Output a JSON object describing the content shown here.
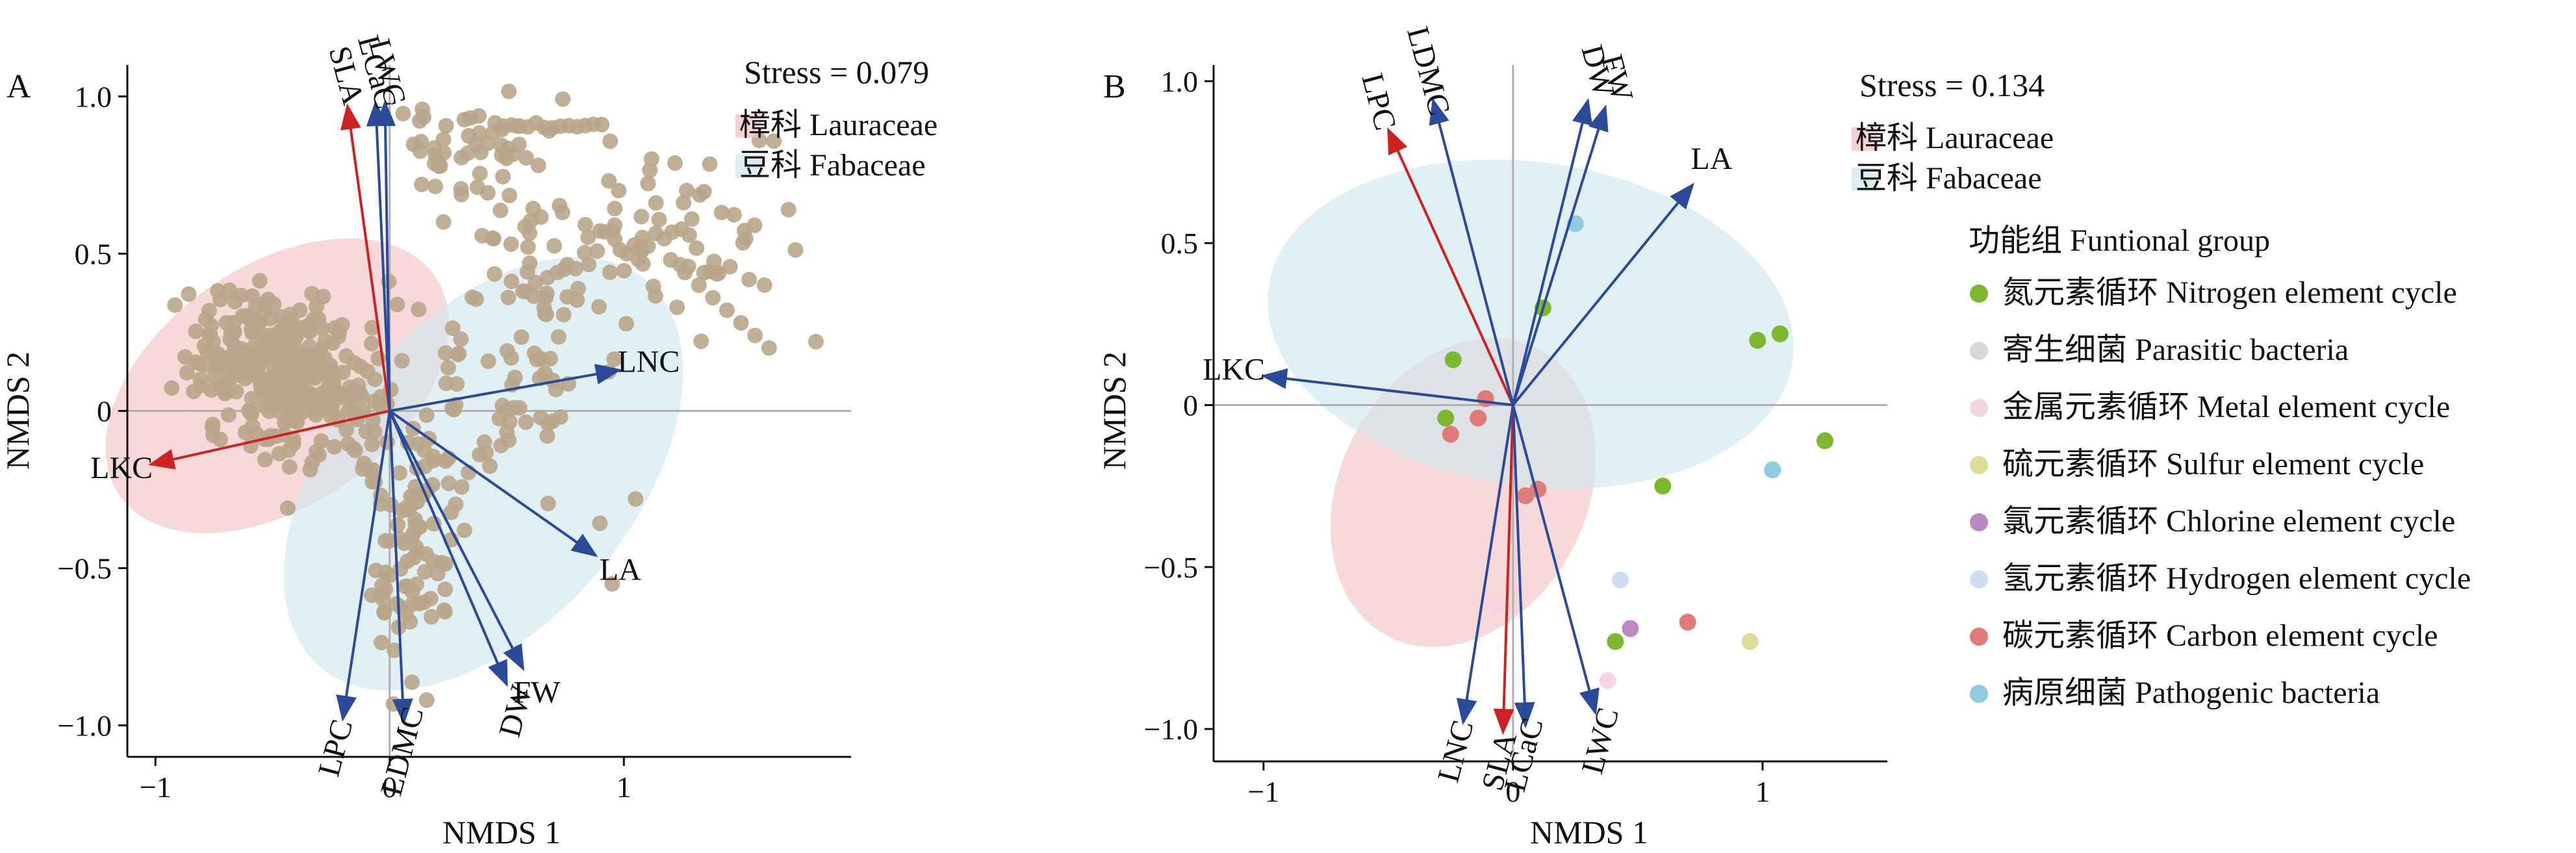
{
  "colors": {
    "axis": "#111111",
    "refline": "#b0b0b0",
    "lauraceae_fill": "#f3c2c4",
    "fabaceae_fill": "#cfe7ee",
    "loading_arrow": "#2b4a9a",
    "highlight_arrow": "#cc2222",
    "pointA": "#b9a58a"
  },
  "chart_data": [
    {
      "panel": "A",
      "type": "scatter",
      "xlabel": "NMDS 1",
      "ylabel": "NMDS 2",
      "xlim": [
        -1.12,
        1.97
      ],
      "ylim": [
        -1.1,
        1.1
      ],
      "xticks": [
        "−1",
        "0",
        "1"
      ],
      "yticks": [
        "−1.0",
        "−0.5",
        "0",
        "0.5",
        "1.0"
      ],
      "stress": "Stress = 0.079",
      "legend": [
        {
          "label": "樟科 Lauraceae",
          "color": "#f3c2c4"
        },
        {
          "label": "豆科 Fabaceae",
          "color": "#cfe7ee"
        }
      ],
      "ellipses": [
        {
          "group": "樟科 Lauraceae",
          "cx": -0.48,
          "cy": 0.08,
          "rx": 0.82,
          "ry": 0.38,
          "angle": 35,
          "color": "#f3c2c4"
        },
        {
          "group": "豆科 Fabaceae",
          "cx": 0.4,
          "cy": -0.2,
          "rx": 1.08,
          "ry": 0.48,
          "angle": 50,
          "color": "#cfe7ee"
        }
      ],
      "arrows": [
        {
          "label": "SLA",
          "x": -0.18,
          "y": 0.97,
          "color": "#cc2222"
        },
        {
          "label": "LCaC",
          "x": -0.06,
          "y": 0.98,
          "color": "#2b4a9a"
        },
        {
          "label": "LWC",
          "x": -0.02,
          "y": 0.98,
          "color": "#2b4a9a"
        },
        {
          "label": "LNC",
          "x": 0.98,
          "y": 0.13,
          "color": "#2b4a9a"
        },
        {
          "label": "LKC",
          "x": -1.02,
          "y": -0.17,
          "color": "#cc2222"
        },
        {
          "label": "LA",
          "x": 0.88,
          "y": -0.46,
          "color": "#2b4a9a"
        },
        {
          "label": "FW",
          "x": 0.57,
          "y": -0.82,
          "color": "#2b4a9a"
        },
        {
          "label": "DW",
          "x": 0.5,
          "y": -0.87,
          "color": "#2b4a9a"
        },
        {
          "label": "LPC",
          "x": -0.2,
          "y": -0.98,
          "color": "#2b4a9a"
        },
        {
          "label": "LDMC",
          "x": 0.06,
          "y": -0.99,
          "color": "#2b4a9a"
        }
      ],
      "point_color": "#b9a58a"
    },
    {
      "panel": "B",
      "type": "scatter",
      "xlabel": "NMDS 1",
      "ylabel": "NMDS 2",
      "xlim": [
        -1.2,
        1.5
      ],
      "ylim": [
        -1.1,
        1.05
      ],
      "xticks": [
        "−1",
        "0",
        "1"
      ],
      "yticks": [
        "−1.0",
        "−0.5",
        "0",
        "0.5",
        "1.0"
      ],
      "stress": "Stress = 0.134",
      "legend": [
        {
          "label": "樟科 Lauraceae",
          "color": "#f3c2c4"
        },
        {
          "label": "豆科 Fabaceae",
          "color": "#cfe7ee"
        }
      ],
      "group_legend_title": "功能组 Funtional group",
      "groups": [
        {
          "label": "氮元素循环 Nitrogen element cycle",
          "color": "#7cb82e"
        },
        {
          "label": "寄生细菌 Parasitic bacteria",
          "color": "#d9d6d6"
        },
        {
          "label": "金属元素循环 Metal element cycle",
          "color": "#f6d4e4"
        },
        {
          "label": "硫元素循环 Sulfur element cycle",
          "color": "#dedc96"
        },
        {
          "label": "氯元素循环 Chlorine element cycle",
          "color": "#b98ac4"
        },
        {
          "label": "氢元素循环 Hydrogen element cycle",
          "color": "#cfdcf4"
        },
        {
          "label": "碳元素循环 Carbon element cycle",
          "color": "#e07b78"
        },
        {
          "label": "病原细菌 Pathogenic bacteria",
          "color": "#8ccbe2"
        }
      ],
      "ellipses": [
        {
          "group": "樟科 Lauraceae",
          "cx": -0.2,
          "cy": -0.27,
          "rx": 0.65,
          "ry": 0.38,
          "angle": 62,
          "color": "#f3c2c4"
        },
        {
          "group": "豆科 Fabaceae",
          "cx": 0.07,
          "cy": 0.25,
          "rx": 1.06,
          "ry": 0.5,
          "angle": -8,
          "color": "#cfe7ee"
        }
      ],
      "arrows": [
        {
          "label": "LPC",
          "x": -0.5,
          "y": 0.85,
          "color": "#cc2222"
        },
        {
          "label": "LDMC",
          "x": -0.32,
          "y": 0.94,
          "color": "#2b4a9a"
        },
        {
          "label": "DW",
          "x": 0.3,
          "y": 0.94,
          "color": "#2b4a9a"
        },
        {
          "label": "FW",
          "x": 0.37,
          "y": 0.92,
          "color": "#2b4a9a"
        },
        {
          "label": "LA",
          "x": 0.72,
          "y": 0.68,
          "color": "#2b4a9a"
        },
        {
          "label": "LKC",
          "x": -1.0,
          "y": 0.09,
          "color": "#2b4a9a"
        },
        {
          "label": "LNC",
          "x": -0.2,
          "y": -0.98,
          "color": "#2b4a9a"
        },
        {
          "label": "SLA",
          "x": -0.04,
          "y": -1.01,
          "color": "#cc2222"
        },
        {
          "label": "LCaC",
          "x": 0.05,
          "y": -0.99,
          "color": "#2b4a9a"
        },
        {
          "label": "LWC",
          "x": 0.33,
          "y": -0.95,
          "color": "#2b4a9a"
        }
      ],
      "points": [
        {
          "x": 0.25,
          "y": 0.56,
          "g": 7
        },
        {
          "x": 0.12,
          "y": 0.3,
          "g": 0
        },
        {
          "x": 0.98,
          "y": 0.2,
          "g": 0
        },
        {
          "x": 1.07,
          "y": 0.22,
          "g": 0
        },
        {
          "x": 1.25,
          "y": -0.11,
          "g": 0
        },
        {
          "x": 1.04,
          "y": -0.2,
          "g": 7
        },
        {
          "x": 0.6,
          "y": -0.25,
          "g": 0
        },
        {
          "x": -0.24,
          "y": 0.14,
          "g": 0
        },
        {
          "x": -0.27,
          "y": -0.04,
          "g": 0
        },
        {
          "x": -0.25,
          "y": -0.09,
          "g": 6
        },
        {
          "x": -0.14,
          "y": -0.04,
          "g": 6
        },
        {
          "x": -0.11,
          "y": 0.02,
          "g": 6
        },
        {
          "x": 0.1,
          "y": -0.26,
          "g": 6
        },
        {
          "x": 0.05,
          "y": -0.28,
          "g": 6
        },
        {
          "x": 0.43,
          "y": -0.54,
          "g": 5
        },
        {
          "x": -0.07,
          "y": -0.62,
          "g": 2
        },
        {
          "x": 0.7,
          "y": -0.67,
          "g": 6
        },
        {
          "x": 0.47,
          "y": -0.69,
          "g": 4
        },
        {
          "x": 0.41,
          "y": -0.73,
          "g": 0
        },
        {
          "x": 0.95,
          "y": -0.73,
          "g": 3
        },
        {
          "x": 0.38,
          "y": -0.85,
          "g": 2
        }
      ]
    }
  ]
}
